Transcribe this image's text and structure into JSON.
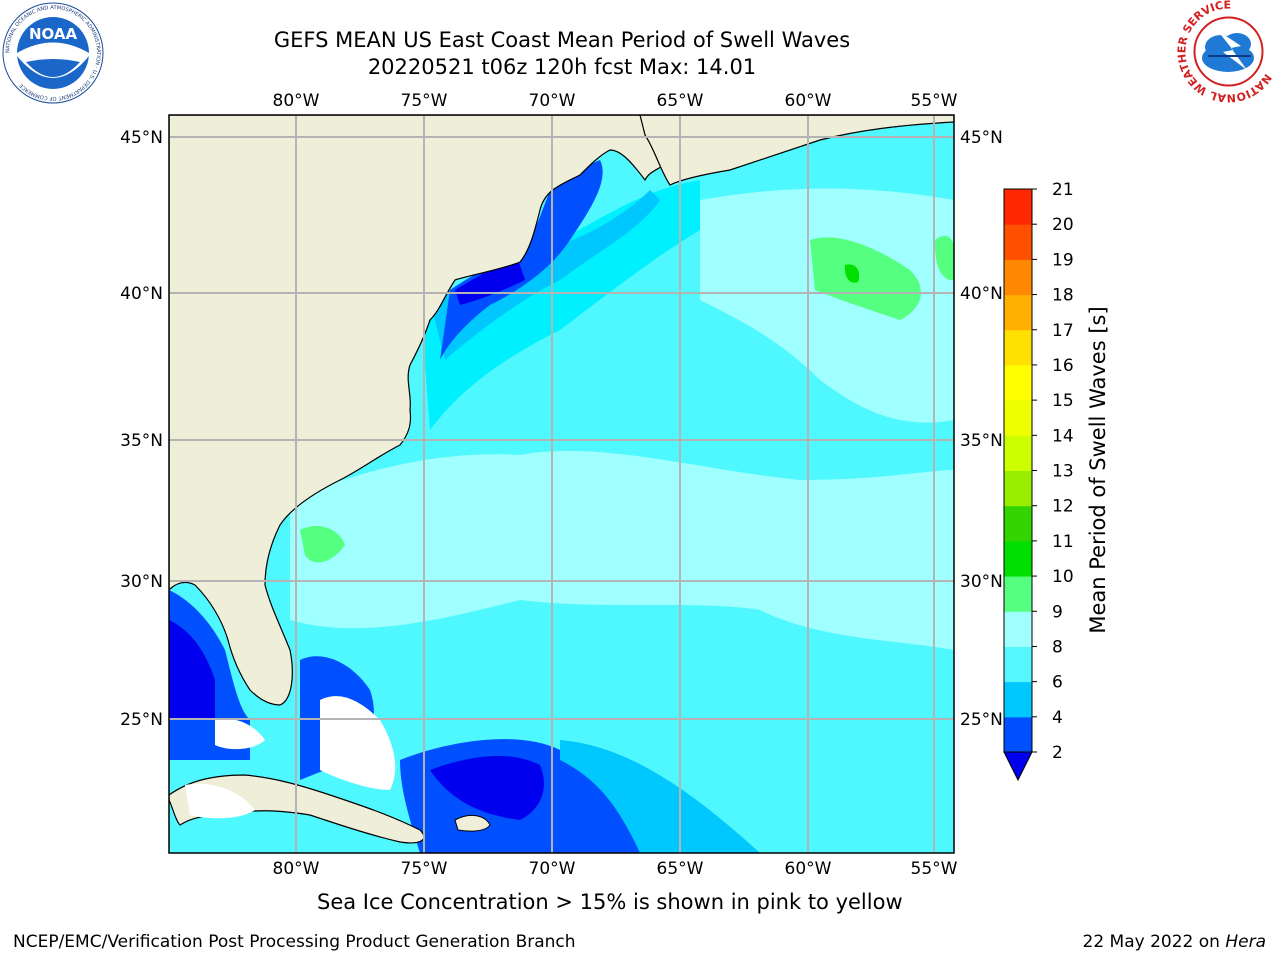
{
  "figure": {
    "title_line1": "GEFS MEAN US East Coast Mean Period of Swell Waves",
    "title_line2": "20220521 t06z 120h fcst   Max: 14.01",
    "caption": "Sea Ice Concentration > 15% is shown in pink to yellow",
    "footer_left": "NCEP/EMC/Verification Post Processing Product Generation Branch",
    "footer_date": "22 May 2022 on ",
    "footer_machine": "Hera"
  },
  "logos": {
    "noaa": {
      "text": "NOAA",
      "ring_text": "NATIONAL OCEANIC AND ATMOSPHERIC ADMINISTRATION · U.S. DEPARTMENT OF COMMERCE"
    },
    "nws": {
      "ring_text": "NATIONAL WEATHER SERVICE"
    }
  },
  "map": {
    "lon_ticks": [
      "80°W",
      "75°W",
      "70°W",
      "65°W",
      "60°W",
      "55°W"
    ],
    "lat_ticks": [
      "45°N",
      "40°N",
      "35°N",
      "30°N",
      "25°N"
    ],
    "lon_range": [
      -85,
      -54.3
    ],
    "lat_range": [
      20.5,
      46
    ],
    "grid": true
  },
  "colorbar": {
    "label": "Mean Period of Swell Waves [s]",
    "ticks": [
      "2",
      "4",
      "6",
      "8",
      "9",
      "10",
      "11",
      "12",
      "13",
      "14",
      "15",
      "16",
      "17",
      "18",
      "19",
      "20",
      "21"
    ],
    "colors": [
      "#0050ff",
      "#00c8ff",
      "#55f7ff",
      "#a0ffff",
      "#55ff80",
      "#00e000",
      "#33d400",
      "#99ee00",
      "#ccff00",
      "#eeff00",
      "#ffff00",
      "#ffe000",
      "#ffb000",
      "#ff8800",
      "#ff5000",
      "#ff2800",
      "#ff0000"
    ],
    "under_color": "#0000ee",
    "extend": "min"
  },
  "colors": {
    "land": "#eeeed9",
    "ocean_base": "#4ff8ff",
    "grid": "#b4b4b4"
  }
}
